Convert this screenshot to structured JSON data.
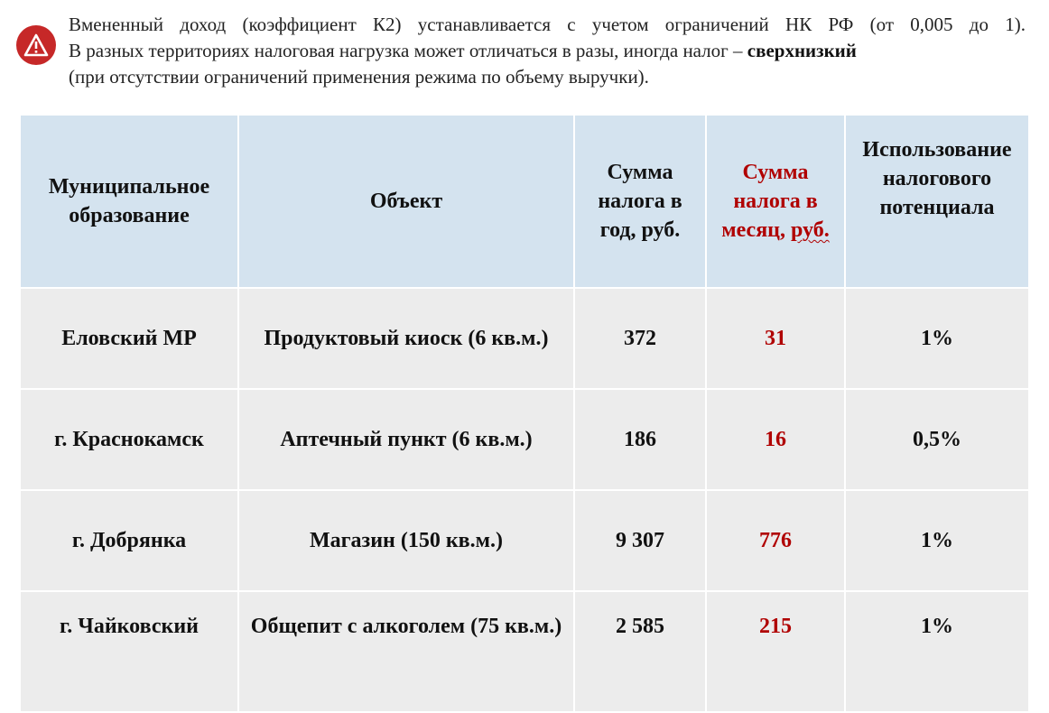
{
  "intro": {
    "line1": "Вмененный доход (коэффициент К2) устанавливается с учетом ограничений НК РФ (от 0,005 до 1).",
    "line2_prefix": "В разных территориях налоговая нагрузка может отличаться в разы, иногда налог – ",
    "line2_bold": "сверхнизкий",
    "line3": "(при отсутствии ограничений применения режима по объему  выручки)."
  },
  "icons": {
    "warning": "warning-triangle-icon",
    "accent": "#c62828"
  },
  "table": {
    "headers": {
      "municipality": "Муниципальное образование",
      "object": "Объект",
      "tax_year": "Сумма налога в год, руб.",
      "tax_month_a": "Сумма налога в месяц, ",
      "tax_month_b": "руб.",
      "potential": "Использование налогового потенциала"
    },
    "rows": [
      {
        "municipality": "Еловский МР",
        "object": "Продуктовый киоск (6 кв.м.)",
        "tax_year": "372",
        "tax_month": "31",
        "potential": "1%"
      },
      {
        "municipality": "г. Краснокамск",
        "object": "Аптечный пункт (6 кв.м.)",
        "tax_year": "186",
        "tax_month": "16",
        "potential": "0,5%"
      },
      {
        "municipality": "г. Добрянка",
        "object": "Магазин (150 кв.м.)",
        "tax_year": "9 307",
        "tax_month": "776",
        "potential": "1%"
      },
      {
        "municipality": "г. Чайковский",
        "object": "Общепит с алкоголем (75 кв.м.)",
        "tax_year": "2 585",
        "tax_month": "215",
        "potential": "1%"
      }
    ],
    "colors": {
      "header_bg": "#d4e3ef",
      "row_bg": "#ececec",
      "highlight": "#b00000"
    }
  }
}
